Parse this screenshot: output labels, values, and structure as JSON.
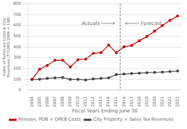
{
  "chart_data": {
    "type": "line",
    "x": [
      2004,
      2005,
      2006,
      2007,
      2008,
      2009,
      2010,
      2011,
      2012,
      2013,
      2014,
      2015,
      2016,
      2017,
      2018,
      2019,
      2020,
      2021,
      2022,
      2023
    ],
    "series": [
      {
        "name": "Pension, POB + OPEB Costs",
        "color": "#cc0000",
        "marker": "circle",
        "values": [
          100,
          195,
          230,
          278,
          278,
          215,
          283,
          288,
          342,
          348,
          418,
          348,
          402,
          415,
          458,
          498,
          548,
          598,
          648,
          688
        ]
      },
      {
        "name": "City Property + Sales Tax Revenues",
        "color": "#444444",
        "marker": "circle",
        "values": [
          100,
          102,
          110,
          115,
          118,
          100,
          100,
          95,
          105,
          110,
          115,
          145,
          150,
          155,
          158,
          162,
          165,
          168,
          173,
          178
        ]
      }
    ],
    "xlabel": "Fiscal Years Ending June 30",
    "ylabel": "Index of Retire-ee Costs & City Revenues (FY2003-2004 = 100)",
    "xlim": [
      2003.5,
      2023.5
    ],
    "xticks": [
      2004,
      2005,
      2006,
      2007,
      2008,
      2009,
      2010,
      2011,
      2012,
      2013,
      2014,
      2015,
      2016,
      2017,
      2018,
      2019,
      2020,
      2021,
      2022,
      2023
    ],
    "ylim": [
      0,
      800
    ],
    "yticks": [
      0,
      100,
      200,
      300,
      400,
      500,
      600,
      700,
      800
    ],
    "grid": true,
    "legend": "bottom",
    "vlines": [
      {
        "x": 2015.5,
        "line_style": "dashed"
      }
    ],
    "annotations": [
      {
        "text": "Actuals",
        "x": 2010.5,
        "y": 620,
        "arrow_from": [
          2013.0,
          620
        ],
        "arrow_to": [
          2014.8,
          620
        ]
      },
      {
        "text": "Forecast",
        "x": 2018.2,
        "y": 620,
        "arrow_from": [
          2018.0,
          620
        ],
        "arrow_to": [
          2016.2,
          620
        ]
      }
    ]
  }
}
